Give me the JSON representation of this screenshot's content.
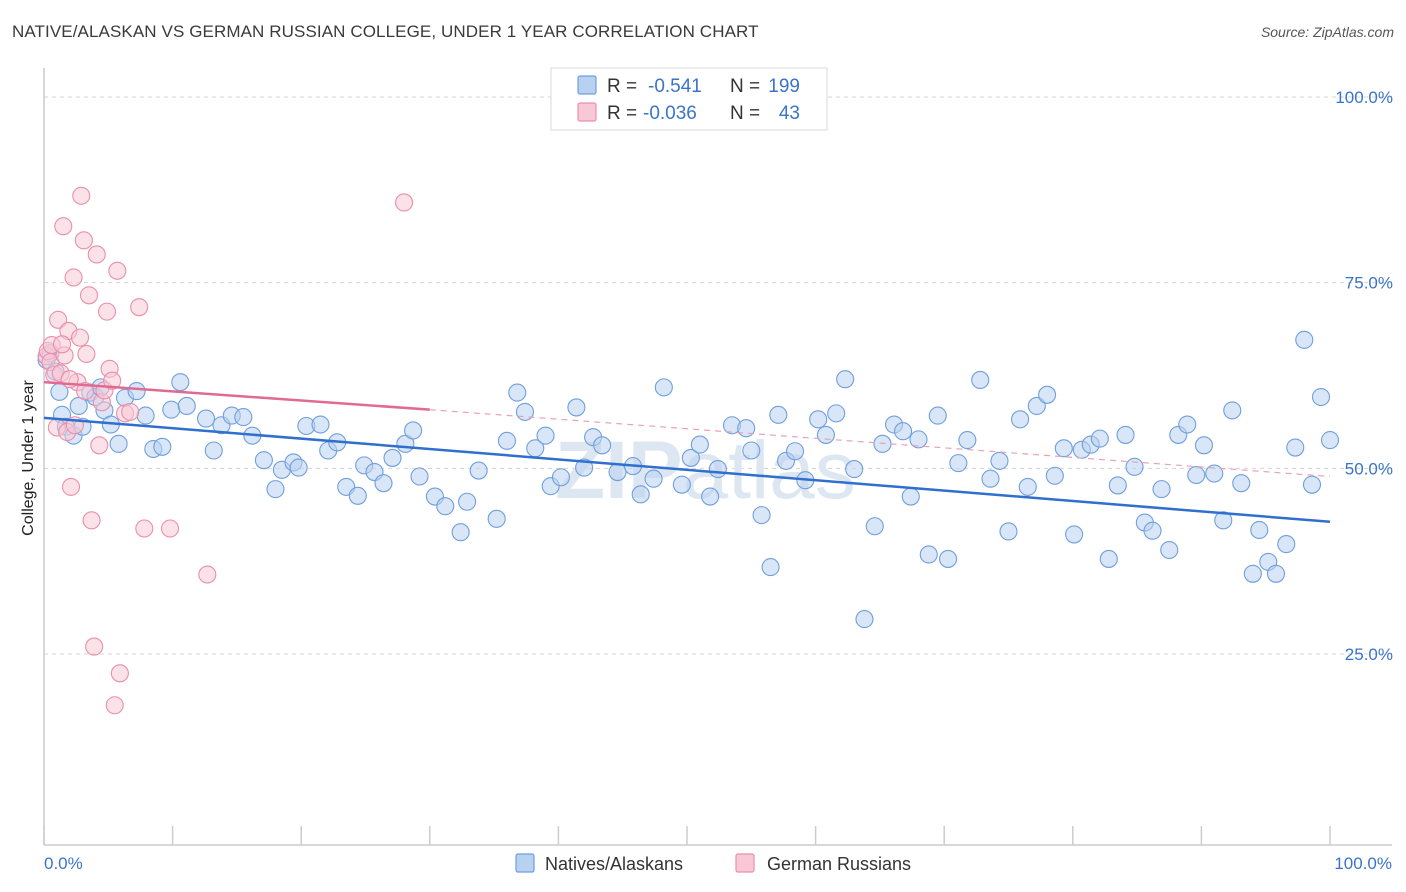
{
  "title": "NATIVE/ALASKAN VS GERMAN RUSSIAN COLLEGE, UNDER 1 YEAR CORRELATION CHART",
  "source": "Source: ZipAtlas.com",
  "watermark": {
    "bold": "ZIP",
    "rest": "atlas"
  },
  "legend": {
    "r_label": "R =",
    "n_label": "N =",
    "rows": [
      {
        "name": "Natives/Alaskans",
        "r": "-0.541",
        "n": "199",
        "fill": "#b9d1f1",
        "stroke": "#6f9fdd"
      },
      {
        "name": "German Russians",
        "r": "-0.036",
        "n": "43",
        "fill": "#f8c8d6",
        "stroke": "#ea8fab"
      }
    ]
  },
  "chart_data": {
    "type": "scatter",
    "title": "NATIVE/ALASKAN VS GERMAN RUSSIAN COLLEGE, UNDER 1 YEAR CORRELATION CHART",
    "xlabel": "",
    "ylabel": "College, Under 1 year",
    "xlim": [
      0,
      100
    ],
    "ylim": [
      0,
      105
    ],
    "x_tick_labels": [
      "0.0%",
      "100.0%"
    ],
    "y_tick_labels": [
      "25.0%",
      "50.0%",
      "75.0%",
      "100.0%"
    ],
    "y_ticks": [
      25,
      50,
      75,
      100
    ],
    "grid": "horizontal dashed",
    "legend_position": "top-center",
    "series": [
      {
        "name": "Natives/Alaskans",
        "color": "#6f9fdd",
        "fill": "#b9d1f1",
        "trend": {
          "x": [
            0,
            100
          ],
          "y": [
            56.8,
            42.8
          ],
          "style": "solid"
        },
        "points": [
          [
            0.2,
            64.6
          ],
          [
            0.5,
            65.5
          ],
          [
            0.9,
            63.0
          ],
          [
            1.2,
            60.3
          ],
          [
            1.4,
            57.2
          ],
          [
            1.7,
            55.6
          ],
          [
            2.3,
            54.4
          ],
          [
            2.7,
            58.4
          ],
          [
            3.0,
            55.6
          ],
          [
            3.6,
            60.2
          ],
          [
            4.0,
            59.6
          ],
          [
            4.4,
            60.9
          ],
          [
            4.7,
            57.8
          ],
          [
            5.2,
            55.9
          ],
          [
            5.8,
            53.3
          ],
          [
            6.3,
            59.5
          ],
          [
            7.2,
            60.4
          ],
          [
            7.9,
            57.1
          ],
          [
            8.5,
            52.6
          ],
          [
            9.2,
            52.9
          ],
          [
            9.9,
            57.9
          ],
          [
            10.6,
            61.6
          ],
          [
            11.1,
            58.4
          ],
          [
            12.6,
            56.7
          ],
          [
            13.2,
            52.4
          ],
          [
            13.8,
            55.8
          ],
          [
            14.6,
            57.1
          ],
          [
            15.5,
            56.9
          ],
          [
            16.2,
            54.4
          ],
          [
            17.1,
            51.1
          ],
          [
            18.0,
            47.2
          ],
          [
            18.5,
            49.8
          ],
          [
            19.4,
            50.8
          ],
          [
            19.8,
            50.1
          ],
          [
            20.4,
            55.7
          ],
          [
            21.5,
            55.9
          ],
          [
            22.1,
            52.4
          ],
          [
            22.8,
            53.5
          ],
          [
            23.5,
            47.5
          ],
          [
            24.4,
            46.3
          ],
          [
            24.9,
            50.4
          ],
          [
            25.7,
            49.5
          ],
          [
            26.4,
            48.0
          ],
          [
            27.1,
            51.4
          ],
          [
            28.1,
            53.3
          ],
          [
            28.7,
            55.1
          ],
          [
            29.2,
            48.9
          ],
          [
            30.4,
            46.2
          ],
          [
            31.2,
            44.9
          ],
          [
            32.4,
            41.4
          ],
          [
            32.9,
            45.5
          ],
          [
            33.8,
            49.7
          ],
          [
            35.2,
            43.2
          ],
          [
            36.0,
            53.7
          ],
          [
            36.8,
            60.2
          ],
          [
            37.4,
            57.6
          ],
          [
            38.2,
            52.7
          ],
          [
            39.0,
            54.4
          ],
          [
            39.4,
            47.6
          ],
          [
            40.2,
            48.8
          ],
          [
            41.4,
            58.2
          ],
          [
            42.0,
            50.1
          ],
          [
            42.7,
            54.2
          ],
          [
            43.4,
            53.1
          ],
          [
            44.6,
            49.5
          ],
          [
            45.8,
            50.3
          ],
          [
            46.4,
            46.5
          ],
          [
            47.4,
            48.6
          ],
          [
            48.2,
            60.9
          ],
          [
            49.6,
            47.8
          ],
          [
            50.3,
            51.4
          ],
          [
            51.0,
            53.2
          ],
          [
            51.8,
            46.2
          ],
          [
            52.4,
            49.9
          ],
          [
            53.5,
            55.8
          ],
          [
            54.6,
            55.4
          ],
          [
            55.0,
            52.4
          ],
          [
            55.8,
            43.7
          ],
          [
            56.5,
            36.7
          ],
          [
            57.1,
            57.2
          ],
          [
            57.7,
            51.0
          ],
          [
            58.4,
            52.3
          ],
          [
            59.2,
            48.4
          ],
          [
            60.2,
            56.6
          ],
          [
            60.8,
            54.5
          ],
          [
            61.6,
            57.4
          ],
          [
            62.3,
            62.0
          ],
          [
            63.0,
            49.9
          ],
          [
            63.8,
            29.7
          ],
          [
            64.6,
            42.2
          ],
          [
            65.2,
            53.3
          ],
          [
            66.1,
            55.9
          ],
          [
            66.8,
            55.0
          ],
          [
            67.4,
            46.2
          ],
          [
            68.0,
            53.9
          ],
          [
            68.8,
            38.4
          ],
          [
            69.5,
            57.1
          ],
          [
            70.3,
            37.8
          ],
          [
            71.1,
            50.7
          ],
          [
            71.8,
            53.8
          ],
          [
            72.8,
            61.9
          ],
          [
            73.6,
            48.6
          ],
          [
            74.3,
            51.0
          ],
          [
            75.0,
            41.5
          ],
          [
            75.9,
            56.6
          ],
          [
            76.5,
            47.5
          ],
          [
            77.2,
            58.4
          ],
          [
            78.0,
            59.9
          ],
          [
            78.6,
            49.0
          ],
          [
            79.3,
            52.7
          ],
          [
            80.1,
            41.1
          ],
          [
            80.7,
            52.5
          ],
          [
            81.4,
            53.2
          ],
          [
            82.1,
            54.0
          ],
          [
            82.8,
            37.8
          ],
          [
            83.5,
            47.7
          ],
          [
            84.1,
            54.5
          ],
          [
            84.8,
            50.2
          ],
          [
            85.6,
            42.7
          ],
          [
            86.2,
            41.6
          ],
          [
            86.9,
            47.2
          ],
          [
            87.5,
            39.0
          ],
          [
            88.2,
            54.5
          ],
          [
            88.9,
            55.9
          ],
          [
            89.6,
            49.1
          ],
          [
            90.2,
            53.1
          ],
          [
            91.0,
            49.3
          ],
          [
            91.7,
            43.0
          ],
          [
            92.4,
            57.8
          ],
          [
            93.1,
            48.0
          ],
          [
            94.0,
            35.8
          ],
          [
            94.5,
            41.7
          ],
          [
            95.2,
            37.4
          ],
          [
            95.8,
            35.8
          ],
          [
            96.6,
            39.8
          ],
          [
            97.3,
            52.8
          ],
          [
            98.0,
            67.3
          ],
          [
            98.6,
            47.8
          ],
          [
            99.3,
            59.6
          ],
          [
            100.0,
            53.8
          ]
        ]
      },
      {
        "name": "German Russians",
        "color": "#ea8fab",
        "fill": "#f8c8d6",
        "trend_solid": {
          "x": [
            0,
            30
          ],
          "y": [
            61.6,
            57.9
          ]
        },
        "trend_dashed": {
          "x": [
            30,
            100
          ],
          "y": [
            57.9,
            48.9
          ]
        },
        "points": [
          [
            0.2,
            65.1
          ],
          [
            0.3,
            65.8
          ],
          [
            0.5,
            64.3
          ],
          [
            0.6,
            66.6
          ],
          [
            0.8,
            62.6
          ],
          [
            1.0,
            55.5
          ],
          [
            1.1,
            70.0
          ],
          [
            1.3,
            62.8
          ],
          [
            1.5,
            82.6
          ],
          [
            1.6,
            65.2
          ],
          [
            1.8,
            54.9
          ],
          [
            1.9,
            68.5
          ],
          [
            2.1,
            47.5
          ],
          [
            2.3,
            75.7
          ],
          [
            2.4,
            55.8
          ],
          [
            2.6,
            61.6
          ],
          [
            2.8,
            67.6
          ],
          [
            2.9,
            86.7
          ],
          [
            3.1,
            80.7
          ],
          [
            3.3,
            65.4
          ],
          [
            3.5,
            73.3
          ],
          [
            3.7,
            43.0
          ],
          [
            3.9,
            26.0
          ],
          [
            4.1,
            78.8
          ],
          [
            4.3,
            53.1
          ],
          [
            4.5,
            58.9
          ],
          [
            4.7,
            60.5
          ],
          [
            4.9,
            71.1
          ],
          [
            5.1,
            63.4
          ],
          [
            5.3,
            61.8
          ],
          [
            5.5,
            18.1
          ],
          [
            5.7,
            76.6
          ],
          [
            5.9,
            22.4
          ],
          [
            6.3,
            57.4
          ],
          [
            6.7,
            57.6
          ],
          [
            7.4,
            71.7
          ],
          [
            7.8,
            41.9
          ],
          [
            9.8,
            41.9
          ],
          [
            12.7,
            35.7
          ],
          [
            28.0,
            85.8
          ],
          [
            1.4,
            66.7
          ],
          [
            2.0,
            62.0
          ],
          [
            3.2,
            60.4
          ]
        ]
      }
    ]
  }
}
